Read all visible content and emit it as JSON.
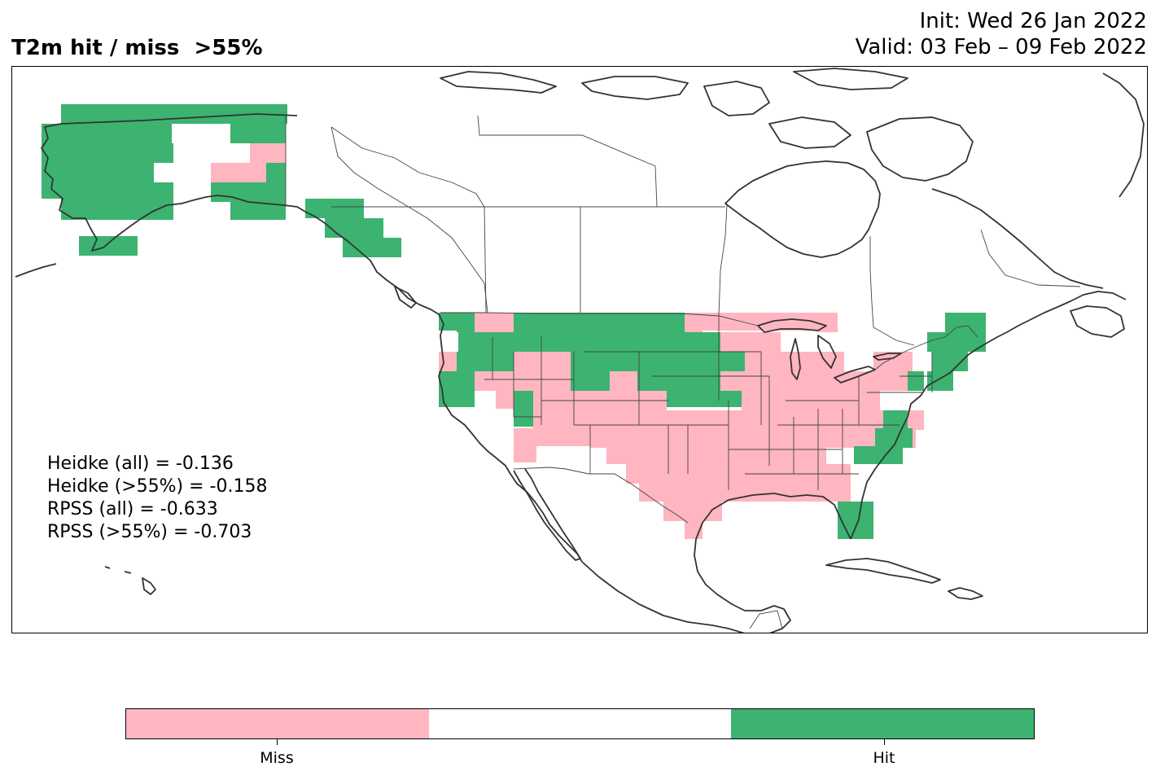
{
  "title_left": "T2m hit / miss  >55%",
  "title_right": {
    "init": "Init: Wed 26 Jan 2022",
    "valid": "Valid: 03 Feb – 09 Feb 2022"
  },
  "scores": [
    "Heidke (all) = -0.136",
    "Heidke (>55%) = -0.158",
    "RPSS (all) = -0.633",
    "RPSS (>55%) = -0.703"
  ],
  "colors": {
    "miss": "#ffb6c1",
    "neutral": "#ffffff",
    "hit": "#3cb371",
    "coast": "#333333"
  },
  "legend": {
    "miss_label": "Miss",
    "hit_label": "Hit"
  }
}
